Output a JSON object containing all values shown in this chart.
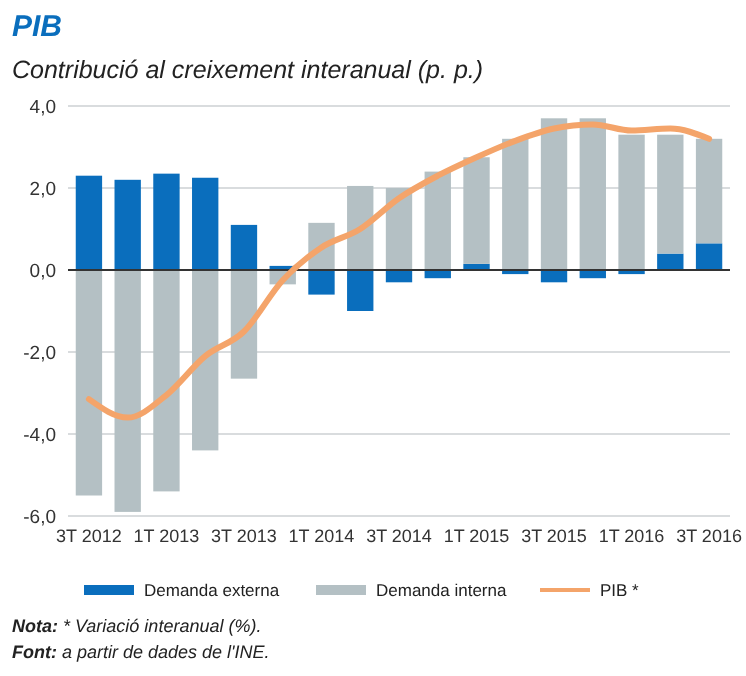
{
  "chart_data": {
    "type": "bar",
    "title": "PIB",
    "subtitle": "Contribució al creixement interanual (p. p.)",
    "categories": [
      "3T 2012",
      null,
      "1T 2013",
      null,
      "3T 2013",
      null,
      "1T 2014",
      null,
      "3T 2014",
      null,
      "1T 2015",
      null,
      "3T 2015",
      null,
      "1T 2016",
      null,
      "3T 2016"
    ],
    "stacked": true,
    "series": [
      {
        "name": "Demanda externa",
        "color": "#0a6ebd",
        "values": [
          2.3,
          2.2,
          2.35,
          2.25,
          1.1,
          0.1,
          -0.6,
          -1.0,
          -0.3,
          -0.2,
          0.15,
          -0.1,
          -0.3,
          -0.2,
          -0.1,
          0.4,
          0.65
        ]
      },
      {
        "name": "Demanda interna",
        "color": "#b4c0c4",
        "values": [
          -5.5,
          -5.9,
          -5.4,
          -4.4,
          -2.65,
          -0.35,
          1.15,
          2.05,
          2.0,
          2.4,
          2.6,
          3.2,
          3.7,
          3.7,
          3.3,
          2.9,
          2.55
        ]
      },
      {
        "name": "PIB *",
        "type": "line",
        "color": "#f4a46a",
        "values": [
          -3.15,
          -3.6,
          -3.05,
          -2.1,
          -1.5,
          -0.25,
          0.55,
          1.0,
          1.75,
          2.3,
          2.75,
          3.15,
          3.45,
          3.55,
          3.4,
          3.45,
          3.2
        ]
      }
    ],
    "ylim": [
      -6,
      4
    ],
    "yticks": [
      {
        "value": -6,
        "label": "-6,0"
      },
      {
        "value": -4,
        "label": "-4,0"
      },
      {
        "value": -2,
        "label": "-2,0"
      },
      {
        "value": 0,
        "label": "0,0"
      },
      {
        "value": 2,
        "label": "2,0"
      },
      {
        "value": 4,
        "label": "4,0"
      }
    ],
    "grid": "y",
    "legend": "bottom",
    "annotations": [
      "Nota: * Variació interanual (%).",
      "Font: a partir de dades de l'INE."
    ]
  }
}
